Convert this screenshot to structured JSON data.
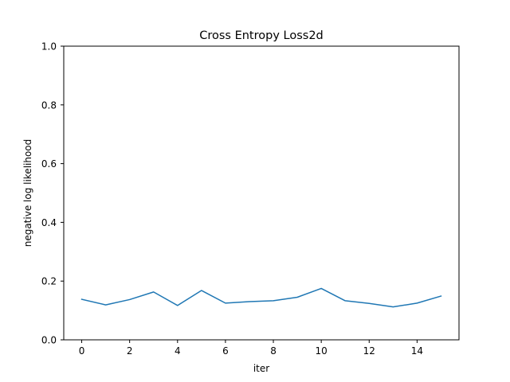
{
  "chart_data": {
    "type": "line",
    "title": "Cross Entropy Loss2d",
    "xlabel": "iter",
    "ylabel": "negative log likelihood",
    "xlim": [
      -0.75,
      15.75
    ],
    "ylim": [
      0.0,
      1.0
    ],
    "xticks": [
      0,
      2,
      4,
      6,
      8,
      10,
      12,
      14
    ],
    "xtick_labels": [
      "0",
      "2",
      "4",
      "6",
      "8",
      "10",
      "12",
      "14"
    ],
    "yticks": [
      0.0,
      0.2,
      0.4,
      0.6,
      0.8,
      1.0
    ],
    "ytick_labels": [
      "0.0",
      "0.2",
      "0.4",
      "0.6",
      "0.8",
      "1.0"
    ],
    "grid": false,
    "series": [
      {
        "color": "#1f77b4",
        "x": [
          0,
          1,
          2,
          3,
          4,
          5,
          6,
          7,
          8,
          9,
          10,
          11,
          12,
          13,
          14,
          15
        ],
        "values": [
          0.138,
          0.119,
          0.137,
          0.163,
          0.117,
          0.168,
          0.125,
          0.13,
          0.133,
          0.145,
          0.175,
          0.133,
          0.124,
          0.112,
          0.125,
          0.149
        ]
      }
    ]
  }
}
